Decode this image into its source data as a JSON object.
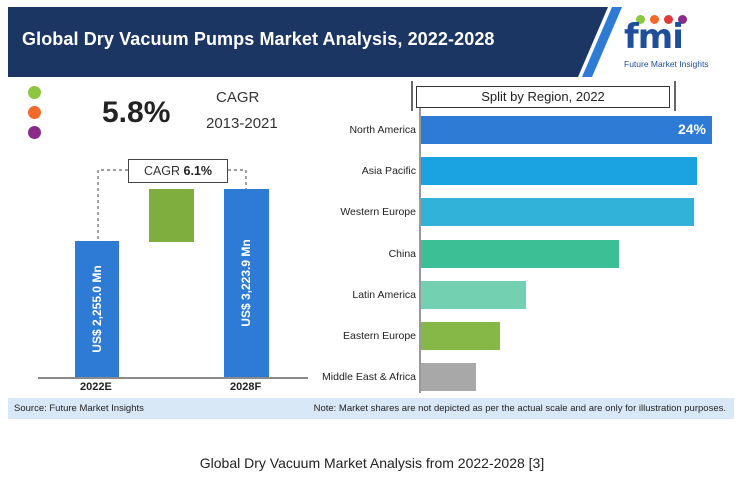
{
  "header": {
    "title": "Global Dry Vacuum Pumps Market Analysis, 2022-2028",
    "logo_text": "fmi",
    "logo_subtitle": "Future Market Insights",
    "colors": {
      "navy": "#1c3664",
      "stripe": "#2e7bd6"
    }
  },
  "cagr": {
    "value": "5.8%",
    "label": "CAGR",
    "period": "2013-2021",
    "dots": [
      "#8dc63f",
      "#f26b2a",
      "#8b2a8b"
    ]
  },
  "forecast": {
    "cagr_box_label": "CAGR",
    "cagr_box_value": "6.1%",
    "bars": [
      {
        "label": "2022E",
        "value_text": "US$ 2,255.0 Mn",
        "value": 2255.0,
        "color": "#2e7bd6"
      },
      {
        "label": "2028F",
        "value_text": "US$ 3,223.9 Mn",
        "value": 3223.9,
        "color": "#2e7bd6"
      }
    ],
    "growth_color": "#7fae3f"
  },
  "chart_data": {
    "type": "bar",
    "title": "Split by Region, 2022",
    "categories": [
      "North America",
      "Asia Pacific",
      "Western Europe",
      "China",
      "Latin America",
      "Eastern Europe",
      "Middle East & Africa"
    ],
    "values": [
      24,
      22.8,
      22.5,
      16.3,
      8.7,
      6.5,
      4.5
    ],
    "labels": [
      "24%",
      "",
      "",
      "",
      "",
      "",
      ""
    ],
    "colors": [
      "#2e7bd6",
      "#1aa3e0",
      "#31b2d8",
      "#3dbf96",
      "#73d0b0",
      "#86b847",
      "#a8a8a8"
    ],
    "orientation": "horizontal",
    "grid": false
  },
  "footer": {
    "source": "Source: Future Market Insights",
    "note": "Note: Market shares are not depicted as per the actual scale and are only for illustration purposes."
  },
  "caption": "Global Dry Vacuum Market Analysis from 2022-2028 [3]"
}
